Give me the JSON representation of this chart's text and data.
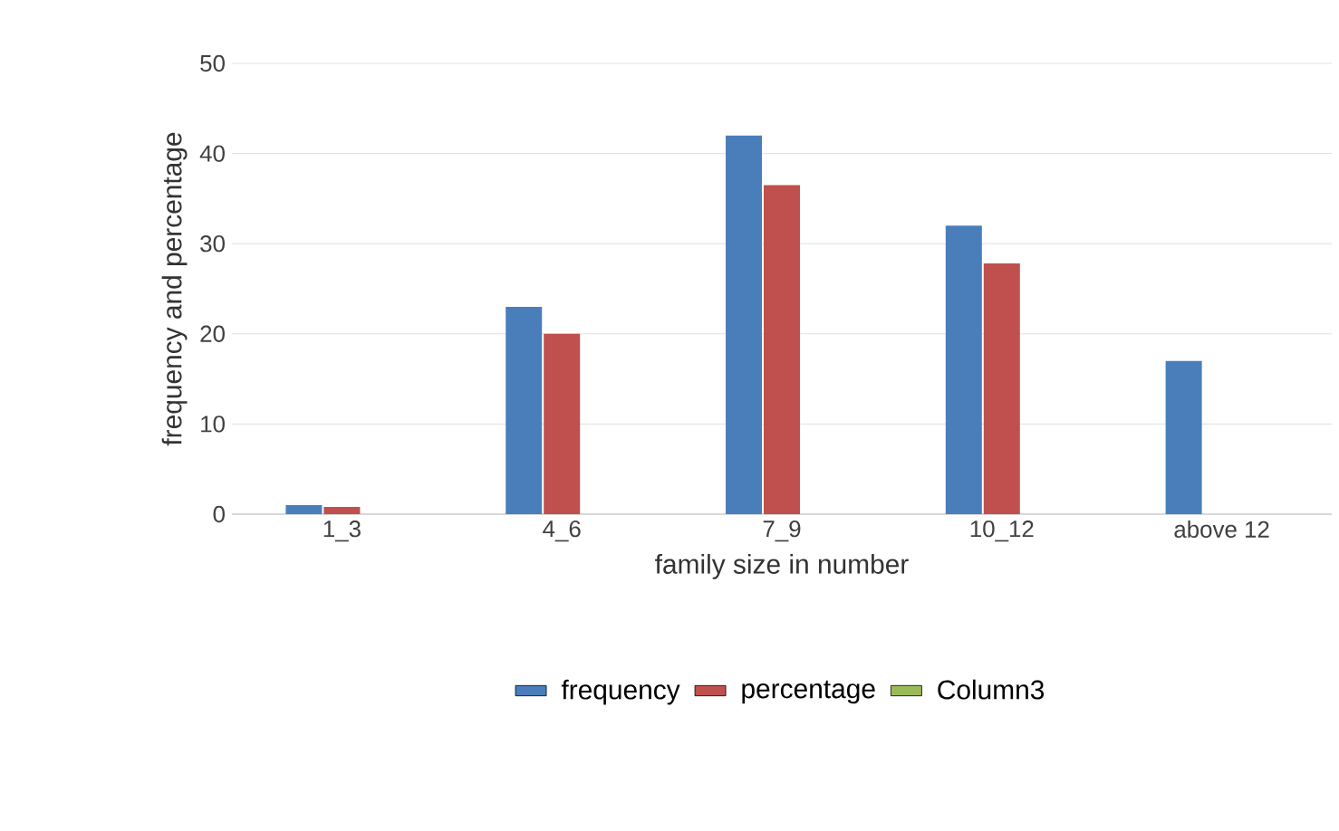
{
  "chart_data": {
    "type": "bar",
    "xlabel": "family size in number",
    "ylabel": "frequency and percentage",
    "categories": [
      "1_3",
      "4_6",
      "7_9",
      "10_12",
      "above 12"
    ],
    "series": [
      {
        "name": "frequency",
        "color": "#4a7ebb",
        "values": [
          1,
          23,
          42,
          32,
          17
        ]
      },
      {
        "name": "percentage",
        "color": "#c0504d",
        "values": [
          0.8,
          20,
          36.5,
          27.8,
          null
        ]
      },
      {
        "name": "Column3",
        "color": "#9bbb59",
        "values": [
          null,
          null,
          null,
          null,
          null
        ]
      }
    ],
    "ylim": [
      0,
      50
    ],
    "yticks": [
      0,
      10,
      20,
      30,
      40,
      50
    ],
    "grid": "y",
    "legend": "bottom"
  }
}
